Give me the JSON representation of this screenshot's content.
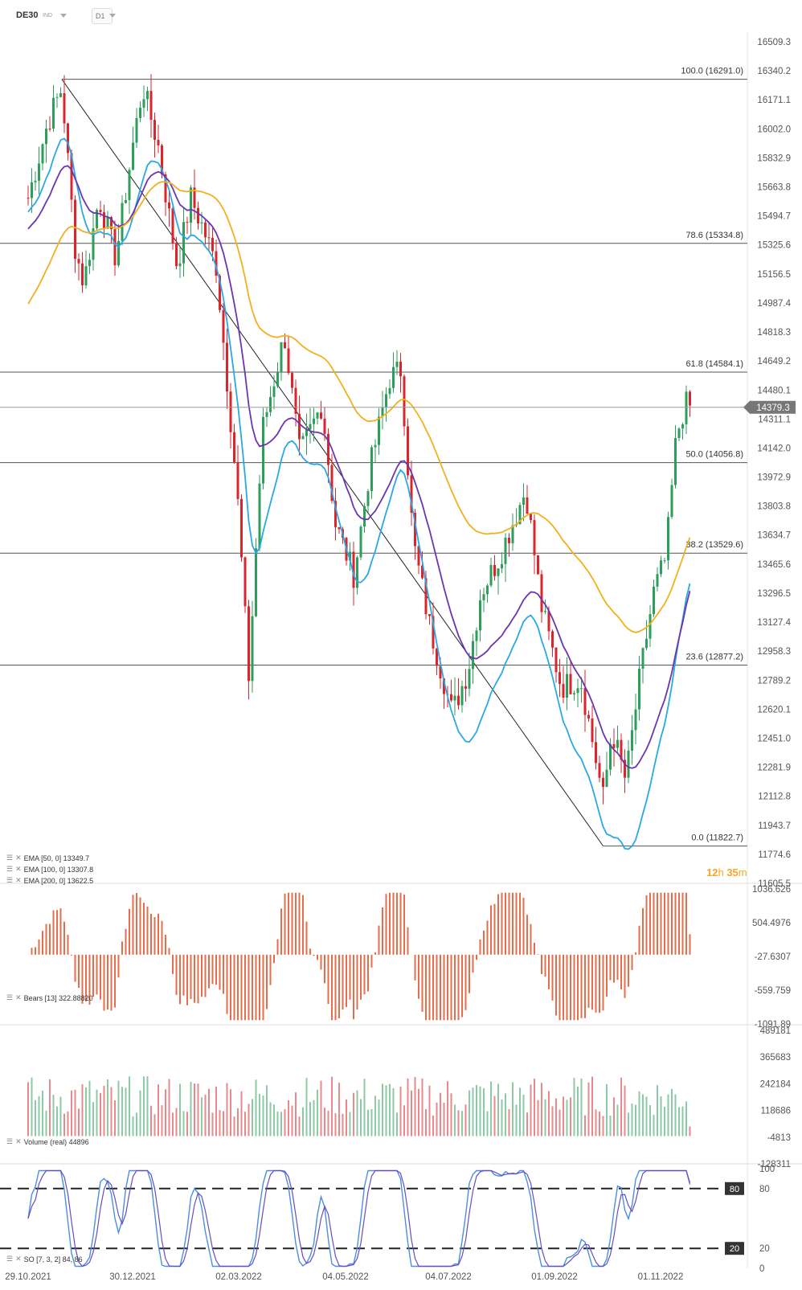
{
  "header": {
    "symbol": "DE30",
    "badge": "IND",
    "timeframe": "D1"
  },
  "price_axis": {
    "labels": [
      "16509.3",
      "16340.2",
      "16171.1",
      "16002.0",
      "15832.9",
      "15663.8",
      "15494.7",
      "15325.6",
      "15156.5",
      "14987.4",
      "14818.3",
      "14649.2",
      "14480.1",
      "14311.1",
      "14142.0",
      "13972.9",
      "13803.8",
      "13634.7",
      "13465.6",
      "13296.5",
      "13127.4",
      "12958.3",
      "12789.2",
      "12620.1",
      "12451.0",
      "12281.9",
      "12112.8",
      "11943.7",
      "11774.6",
      "11605.5"
    ],
    "current_price": "14379.3"
  },
  "fib_levels": [
    {
      "label": "100.0 (16291.0)",
      "value": 16291.0
    },
    {
      "label": "78.6 (15334.8)",
      "value": 15334.8
    },
    {
      "label": "61.8 (14584.1)",
      "value": 14584.1
    },
    {
      "label": "50.0 (14056.8)",
      "value": 14056.8
    },
    {
      "label": "38.2 (13529.6)",
      "value": 13529.6
    },
    {
      "label": "23.6 (12877.2)",
      "value": 12877.2
    },
    {
      "label": "0.0 (11822.7)",
      "value": 11822.7
    }
  ],
  "legend": {
    "ema50": "EMA  [50,  0]  13349.7",
    "ema100": "EMA  [100,  0]  13307.8",
    "ema200": "EMA  [200,  0]  13622.5",
    "bears": "Bears  [13]  322.88820",
    "volume": "Volume  (real)  44896",
    "so": "SO  [7,  3,  2]  84,  86"
  },
  "timer": {
    "hours": "12",
    "h": "h",
    "minutes": "35",
    "m": "m"
  },
  "bears_axis": [
    "1036.626",
    "504.4976",
    "-27.6307",
    "-559.759",
    "-1091.89"
  ],
  "volume_axis": [
    "489181",
    "365683",
    "242184",
    "118686",
    "-4813",
    "-128311"
  ],
  "so_axis": [
    "100",
    "80",
    "20",
    "0"
  ],
  "so_levels": [
    "80",
    "20"
  ],
  "x_axis": [
    "29.10.2021",
    "30.12.2021",
    "02.03.2022",
    "04.05.2022",
    "04.07.2022",
    "01.09.2022",
    "01.11.2022"
  ],
  "chart_data": {
    "type": "candlestick",
    "symbol": "DE30",
    "timeframe": "D1",
    "ylim": [
      11605.5,
      16509.3
    ],
    "close_path": [
      {
        "date": "29.10.2021",
        "close": 15600
      },
      {
        "date": "10.11.2021",
        "close": 16050
      },
      {
        "date": "18.11.2021",
        "close": 16240
      },
      {
        "date": "26.11.2021",
        "close": 15300
      },
      {
        "date": "01.12.2021",
        "close": 15100
      },
      {
        "date": "10.12.2021",
        "close": 15600
      },
      {
        "date": "20.12.2021",
        "close": 15250
      },
      {
        "date": "30.12.2021",
        "close": 15900
      },
      {
        "date": "05.01.2022",
        "close": 16250
      },
      {
        "date": "14.01.2022",
        "close": 15900
      },
      {
        "date": "25.01.2022",
        "close": 15200
      },
      {
        "date": "02.02.2022",
        "close": 15600
      },
      {
        "date": "10.02.2022",
        "close": 15400
      },
      {
        "date": "17.02.2022",
        "close": 15200
      },
      {
        "date": "24.02.2022",
        "close": 14450
      },
      {
        "date": "01.03.2022",
        "close": 13900
      },
      {
        "date": "08.03.2022",
        "close": 12800
      },
      {
        "date": "16.03.2022",
        "close": 14250
      },
      {
        "date": "29.03.2022",
        "close": 14800
      },
      {
        "date": "07.04.2022",
        "close": 14100
      },
      {
        "date": "20.04.2022",
        "close": 14400
      },
      {
        "date": "28.04.2022",
        "close": 13700
      },
      {
        "date": "09.05.2022",
        "close": 13400
      },
      {
        "date": "18.05.2022",
        "close": 14000
      },
      {
        "date": "30.05.2022",
        "close": 14550
      },
      {
        "date": "06.06.2022",
        "close": 14600
      },
      {
        "date": "13.06.2022",
        "close": 13600
      },
      {
        "date": "23.06.2022",
        "close": 13100
      },
      {
        "date": "01.07.2022",
        "close": 12800
      },
      {
        "date": "06.07.2022",
        "close": 12600
      },
      {
        "date": "15.07.2022",
        "close": 12850
      },
      {
        "date": "22.07.2022",
        "close": 13300
      },
      {
        "date": "01.08.2022",
        "close": 13500
      },
      {
        "date": "16.08.2022",
        "close": 13900
      },
      {
        "date": "25.08.2022",
        "close": 13200
      },
      {
        "date": "05.09.2022",
        "close": 12750
      },
      {
        "date": "16.09.2022",
        "close": 12800
      },
      {
        "date": "29.09.2022",
        "close": 12100
      },
      {
        "date": "04.10.2022",
        "close": 12500
      },
      {
        "date": "12.10.2022",
        "close": 12200
      },
      {
        "date": "20.10.2022",
        "close": 12800
      },
      {
        "date": "28.10.2022",
        "close": 13300
      },
      {
        "date": "04.11.2022",
        "close": 13500
      },
      {
        "date": "10.11.2022",
        "close": 14200
      },
      {
        "date": "15.11.2022",
        "close": 14400
      },
      {
        "date": "18.11.2022",
        "close": 14380
      }
    ],
    "ema": [
      {
        "name": "EMA  [50,  0]",
        "color": "#29a8e6",
        "last": 13349.7
      },
      {
        "name": "EMA  [100,  0]",
        "color": "#6c35b0",
        "last": 13307.8
      },
      {
        "name": "EMA  [200,  0]",
        "color": "#f2b01e",
        "last": 13622.5
      }
    ],
    "trendline": {
      "from": {
        "date": "18.11.2021",
        "value": 16291
      },
      "to": {
        "date": "29.09.2022",
        "value": 11822.7
      }
    },
    "bears": {
      "name": "Bears [13]",
      "last": 322.8882,
      "ylim": [
        -1091.89,
        1036.626
      ]
    },
    "volume": {
      "name": "Volume (real)",
      "last": 44896,
      "ylim": [
        -128311,
        489181
      ]
    },
    "stochastic": {
      "name": "SO [7, 3, 2]",
      "k": 84,
      "d": 86,
      "levels": [
        80,
        20
      ],
      "ylim": [
        0,
        100
      ]
    },
    "colors": {
      "up": "#2e9e5b",
      "down": "#d8262c",
      "bears": "#e56d4b",
      "fib": "#555555",
      "grid": "#eeeeee"
    }
  }
}
